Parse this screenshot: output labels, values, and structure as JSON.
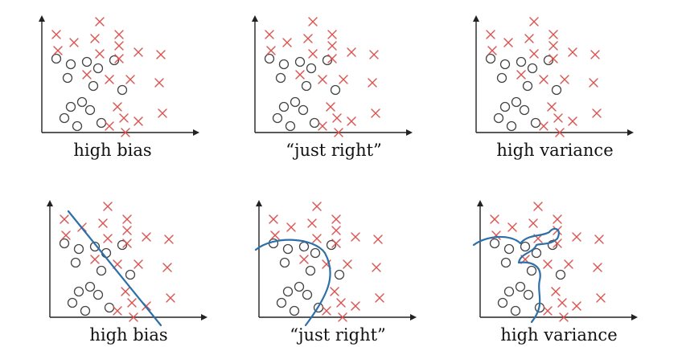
{
  "colors": {
    "background": "#ffffff",
    "axis": "#222222",
    "circle": "#444444",
    "cross": "#d9534f",
    "boundary": "#2d6fa8"
  },
  "rows": [
    {
      "row": "top",
      "panels": [
        {
          "caption": "high bias",
          "boundary": "none"
        },
        {
          "caption": "“just right”",
          "boundary": "none"
        },
        {
          "caption": "high variance",
          "boundary": "none"
        }
      ]
    },
    {
      "row": "bottom",
      "panels": [
        {
          "caption": "high bias",
          "boundary": "linear"
        },
        {
          "caption": "“just right”",
          "boundary": "smooth-curve"
        },
        {
          "caption": "high variance",
          "boundary": "overfit-curve"
        }
      ]
    }
  ]
}
